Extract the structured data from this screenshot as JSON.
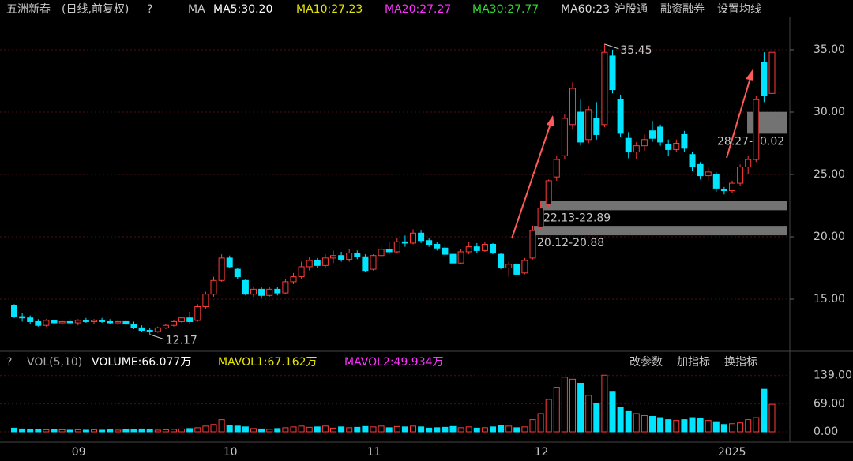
{
  "header": {
    "name": "五洲新春",
    "mode": "(日线,前复权)",
    "help": "?",
    "ma": "MA",
    "ma5": "MA5:30.20",
    "ma10": "MA10:27.23",
    "ma20": "MA20:27.27",
    "ma30": "MA30:27.77",
    "ma60": "MA60:23",
    "hgt": "沪股通",
    "rzrq": "融资融券",
    "settings": "设置均线"
  },
  "chart_data": [
    {
      "type": "candlestick",
      "up_color": "#ff3b3b",
      "down_color": "#00e5ff",
      "categories": [
        null,
        null,
        null,
        null,
        null,
        null,
        null,
        null,
        "09",
        null,
        null,
        null,
        null,
        null,
        null,
        null,
        null,
        null,
        null,
        null,
        null,
        null,
        null,
        null,
        null,
        null,
        null,
        "10",
        null,
        null,
        null,
        null,
        null,
        null,
        null,
        null,
        null,
        null,
        null,
        null,
        null,
        null,
        null,
        null,
        null,
        "11",
        null,
        null,
        null,
        null,
        null,
        null,
        null,
        null,
        null,
        null,
        null,
        null,
        null,
        null,
        null,
        null,
        null,
        null,
        null,
        null,
        "12",
        null,
        null,
        null,
        null,
        null,
        null,
        null,
        null,
        null,
        null,
        null,
        null,
        null,
        null,
        null,
        null,
        null,
        null,
        null,
        null,
        null,
        null,
        "2025",
        null,
        null,
        null,
        null,
        null,
        null
      ],
      "ohlc": [
        [
          14.5,
          14.6,
          13.5,
          13.6
        ],
        [
          13.6,
          13.9,
          13.2,
          13.5
        ],
        [
          13.5,
          13.7,
          13.0,
          13.2
        ],
        [
          13.2,
          13.4,
          12.8,
          12.9
        ],
        [
          12.9,
          13.4,
          12.8,
          13.3
        ],
        [
          13.3,
          13.5,
          13.0,
          13.1
        ],
        [
          13.1,
          13.3,
          12.9,
          13.2
        ],
        [
          13.2,
          13.4,
          13.0,
          13.1
        ],
        [
          13.1,
          13.4,
          12.9,
          13.3
        ],
        [
          13.3,
          13.5,
          13.1,
          13.2
        ],
        [
          13.2,
          13.4,
          13.0,
          13.3
        ],
        [
          13.3,
          13.5,
          13.1,
          13.2
        ],
        [
          13.2,
          13.4,
          13.0,
          13.1
        ],
        [
          13.1,
          13.3,
          12.9,
          13.2
        ],
        [
          13.2,
          13.3,
          12.9,
          13.0
        ],
        [
          13.0,
          13.2,
          12.6,
          12.7
        ],
        [
          12.7,
          12.9,
          12.4,
          12.5
        ],
        [
          12.5,
          12.7,
          12.17,
          12.4
        ],
        [
          12.4,
          12.8,
          12.3,
          12.7
        ],
        [
          12.7,
          13.0,
          12.6,
          12.9
        ],
        [
          12.9,
          13.3,
          12.8,
          13.2
        ],
        [
          13.2,
          13.6,
          13.1,
          13.5
        ],
        [
          13.5,
          14.0,
          13.0,
          13.2
        ],
        [
          13.3,
          14.6,
          13.2,
          14.4
        ],
        [
          14.4,
          15.6,
          14.2,
          15.4
        ],
        [
          15.4,
          16.8,
          15.2,
          16.5
        ],
        [
          16.5,
          18.6,
          16.4,
          18.3
        ],
        [
          18.3,
          18.5,
          17.5,
          17.6
        ],
        [
          17.4,
          17.5,
          16.6,
          16.8
        ],
        [
          16.5,
          16.6,
          15.3,
          15.4
        ],
        [
          15.4,
          16.0,
          15.2,
          15.8
        ],
        [
          15.8,
          16.0,
          15.1,
          15.3
        ],
        [
          15.3,
          16.0,
          15.2,
          15.8
        ],
        [
          15.8,
          16.0,
          15.3,
          15.5
        ],
        [
          15.5,
          16.6,
          15.4,
          16.4
        ],
        [
          16.4,
          17.1,
          16.2,
          16.8
        ],
        [
          16.8,
          18.0,
          16.6,
          17.6
        ],
        [
          17.6,
          18.4,
          17.3,
          18.1
        ],
        [
          18.1,
          18.3,
          17.5,
          17.7
        ],
        [
          17.7,
          18.6,
          17.5,
          18.3
        ],
        [
          18.3,
          18.9,
          17.9,
          18.5
        ],
        [
          18.5,
          18.8,
          18.0,
          18.2
        ],
        [
          18.2,
          19.0,
          18.0,
          18.7
        ],
        [
          18.7,
          18.9,
          18.2,
          18.4
        ],
        [
          18.4,
          18.6,
          17.2,
          17.3
        ],
        [
          17.4,
          18.6,
          17.3,
          18.5
        ],
        [
          18.5,
          19.3,
          18.3,
          19.0
        ],
        [
          19.0,
          19.6,
          18.6,
          18.8
        ],
        [
          18.8,
          19.9,
          18.7,
          19.6
        ],
        [
          19.6,
          20.1,
          19.2,
          19.5
        ],
        [
          19.5,
          20.6,
          19.4,
          20.3
        ],
        [
          20.3,
          20.5,
          19.5,
          19.7
        ],
        [
          19.7,
          19.9,
          19.2,
          19.4
        ],
        [
          19.4,
          19.6,
          18.9,
          19.1
        ],
        [
          19.1,
          19.3,
          18.4,
          18.6
        ],
        [
          18.6,
          18.8,
          17.8,
          17.9
        ],
        [
          17.9,
          19.0,
          17.8,
          18.8
        ],
        [
          18.8,
          19.6,
          18.6,
          19.2
        ],
        [
          19.2,
          19.5,
          18.7,
          18.9
        ],
        [
          18.9,
          19.6,
          18.8,
          19.4
        ],
        [
          19.4,
          19.5,
          18.6,
          18.7
        ],
        [
          18.6,
          18.7,
          17.4,
          17.5
        ],
        [
          17.5,
          18.0,
          16.8,
          17.8
        ],
        [
          17.8,
          17.9,
          16.9,
          17.0
        ],
        [
          17.1,
          18.3,
          17.0,
          18.1
        ],
        [
          18.3,
          20.9,
          18.2,
          20.5
        ],
        [
          20.8,
          22.8,
          20.6,
          22.3
        ],
        [
          22.6,
          24.6,
          22.4,
          24.5
        ],
        [
          24.8,
          26.5,
          24.5,
          26.2
        ],
        [
          26.5,
          29.8,
          26.2,
          29.5
        ],
        [
          29.0,
          32.4,
          28.6,
          31.9
        ],
        [
          30.0,
          31.0,
          27.3,
          27.6
        ],
        [
          27.8,
          30.5,
          27.5,
          30.2
        ],
        [
          29.5,
          30.8,
          27.8,
          28.2
        ],
        [
          29.0,
          35.45,
          28.8,
          34.8
        ],
        [
          34.5,
          35.0,
          31.5,
          31.8
        ],
        [
          31.0,
          31.4,
          28.0,
          28.3
        ],
        [
          27.9,
          28.4,
          26.3,
          26.8
        ],
        [
          26.8,
          27.6,
          26.2,
          27.3
        ],
        [
          27.3,
          28.2,
          26.9,
          27.8
        ],
        [
          28.5,
          29.3,
          27.6,
          27.9
        ],
        [
          28.8,
          29.0,
          27.3,
          27.6
        ],
        [
          27.4,
          27.8,
          26.5,
          27.0
        ],
        [
          27.0,
          27.8,
          26.8,
          27.5
        ],
        [
          28.2,
          28.5,
          26.8,
          27.1
        ],
        [
          26.6,
          26.8,
          25.3,
          25.6
        ],
        [
          25.8,
          26.0,
          24.6,
          24.9
        ],
        [
          24.9,
          25.6,
          24.5,
          25.2
        ],
        [
          25.0,
          25.2,
          23.6,
          23.9
        ],
        [
          23.8,
          24.0,
          23.4,
          23.7
        ],
        [
          23.7,
          24.5,
          23.5,
          24.3
        ],
        [
          24.3,
          25.8,
          24.1,
          25.6
        ],
        [
          25.6,
          26.5,
          25.0,
          26.2
        ],
        [
          26.2,
          31.3,
          26.0,
          31.0
        ],
        [
          34.0,
          34.8,
          30.8,
          31.3
        ],
        [
          31.5,
          35.0,
          31.2,
          34.8
        ]
      ],
      "ylim": [
        10.95,
        36.14
      ],
      "yticks": [
        {
          "value": 35,
          "label": "35.00"
        },
        {
          "value": 30,
          "label": "30.00"
        },
        {
          "value": 25,
          "label": "25.00"
        },
        {
          "value": 20,
          "label": "20.00"
        },
        {
          "value": 15,
          "label": "15.00"
        }
      ],
      "grid": true,
      "annotations": [
        {
          "index": 74,
          "value": 35.45,
          "label": "35.45"
        },
        {
          "index": 17,
          "value": 12.17,
          "label": "12.17"
        }
      ],
      "zones": [
        {
          "label": "28.27-30.02",
          "low": 28.27,
          "high": 30.02
        },
        {
          "label": "22.13-22.89",
          "low": 22.13,
          "high": 22.89
        },
        {
          "label": "20.12-20.88",
          "low": 20.12,
          "high": 20.88
        }
      ]
    },
    {
      "type": "volume",
      "help": "?",
      "title": "VOL(5,10)",
      "volume_label": "VOLUME:66.077万",
      "mavol1": "MAVOL1:67.162万",
      "mavol2": "MAVOL2:49.934万",
      "buttons": [
        "改参数",
        "加指标",
        "换指标"
      ],
      "values": [
        9,
        7,
        6,
        5,
        5,
        6,
        5,
        4,
        5,
        4,
        5,
        4,
        5,
        4,
        5,
        6,
        7,
        5,
        4,
        5,
        6,
        7,
        8,
        10,
        14,
        18,
        30,
        16,
        14,
        12,
        8,
        7,
        6,
        8,
        10,
        12,
        14,
        11,
        12,
        14,
        9,
        12,
        10,
        11,
        13,
        12,
        14,
        10,
        13,
        12,
        14,
        12,
        9,
        10,
        11,
        13,
        10,
        12,
        9,
        10,
        12,
        15,
        14,
        10,
        12,
        30,
        45,
        80,
        110,
        135,
        130,
        120,
        90,
        70,
        140,
        100,
        60,
        50,
        45,
        40,
        38,
        35,
        30,
        28,
        30,
        35,
        33,
        28,
        25,
        18,
        20,
        22,
        30,
        35,
        105,
        68
      ],
      "ylim": [
        0,
        158
      ],
      "yticks": [
        {
          "value": 139,
          "label": "139.00"
        },
        {
          "value": 69,
          "label": "69.00"
        },
        {
          "value": 0,
          "label": "0.00"
        }
      ]
    }
  ]
}
